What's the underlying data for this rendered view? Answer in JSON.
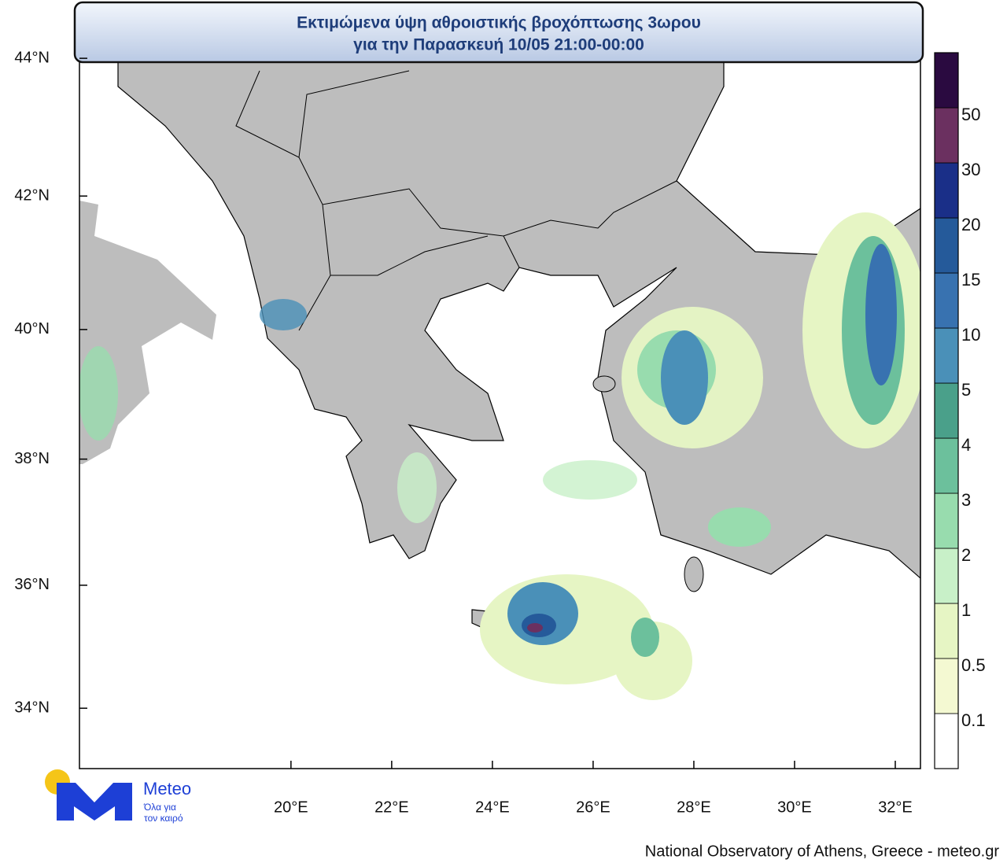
{
  "header": {
    "title_lines": [
      "Εκτιμώμενα ύψη αθροιστικής βροχόπτωσης 3ωρου",
      "για την Παρασκευή 10/05 21:00-00:00"
    ]
  },
  "map": {
    "xlim": [
      15.8,
      32.5
    ],
    "ylim": [
      33.0,
      44.1
    ],
    "lon_ticks": [
      {
        "value": 20,
        "label": "20°E"
      },
      {
        "value": 22,
        "label": "22°E"
      },
      {
        "value": 24,
        "label": "24°E"
      },
      {
        "value": 26,
        "label": "26°E"
      },
      {
        "value": 28,
        "label": "28°E"
      },
      {
        "value": 30,
        "label": "30°E"
      },
      {
        "value": 32,
        "label": "32°E"
      }
    ],
    "lat_ticks": [
      {
        "value": 44,
        "label": "44°N"
      },
      {
        "value": 42,
        "label": "42°N"
      },
      {
        "value": 40,
        "label": "40°N"
      },
      {
        "value": 38,
        "label": "38°N"
      },
      {
        "value": 36,
        "label": "36°N"
      },
      {
        "value": 34,
        "label": "34°N"
      }
    ]
  },
  "colorbar": {
    "labels": [
      "0.1",
      "0.5",
      "1",
      "2",
      "3",
      "4",
      "5",
      "10",
      "15",
      "20",
      "30",
      "50"
    ],
    "colors": [
      "#ffffff",
      "#f4f9d2",
      "#e6f5c4",
      "#c8f0c8",
      "#98dcae",
      "#6cc09c",
      "#4aa08a",
      "#4a90b8",
      "#3872b0",
      "#255a9a",
      "#1a2f88",
      "#6b3060",
      "#2a0a40"
    ]
  },
  "logo": {
    "name": "Meteo",
    "tagline_lines": [
      "Όλα για",
      "τον καιρό"
    ]
  },
  "footer": "National Observatory of Athens, Greece - meteo.gr"
}
